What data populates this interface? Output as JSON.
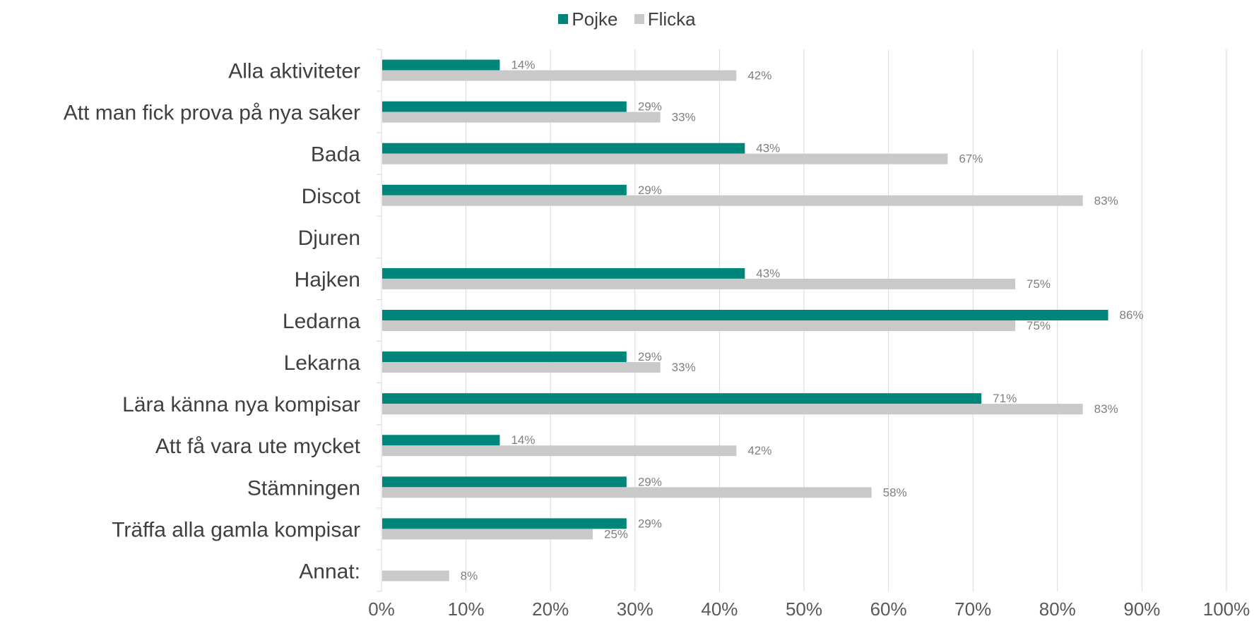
{
  "chart_data": {
    "type": "bar",
    "orientation": "horizontal",
    "categories": [
      "Alla aktiviteter",
      "Att man fick prova på nya saker",
      "Bada",
      "Discot",
      "Djuren",
      "Hajken",
      "Ledarna",
      "Lekarna",
      "Lära känna nya kompisar",
      "Att få vara ute mycket",
      "Stämningen",
      "Träffa alla gamla kompisar",
      "Annat:"
    ],
    "series": [
      {
        "name": "Pojke",
        "color": "#00857a",
        "values": [
          14,
          29,
          43,
          29,
          null,
          43,
          86,
          29,
          71,
          14,
          29,
          29,
          null
        ],
        "labels": [
          "14%",
          "29%",
          "43%",
          "29%",
          "",
          "43%",
          "86%",
          "29%",
          "71%",
          "14%",
          "29%",
          "29%",
          ""
        ]
      },
      {
        "name": "Flicka",
        "color": "#c9c9c9",
        "values": [
          42,
          33,
          67,
          83,
          null,
          75,
          75,
          33,
          83,
          42,
          58,
          25,
          8
        ],
        "labels": [
          "42%",
          "33%",
          "67%",
          "83%",
          "",
          "75%",
          "75%",
          "33%",
          "83%",
          "42%",
          "58%",
          "25%",
          "8%"
        ]
      }
    ],
    "x_ticks": [
      "0%",
      "10%",
      "20%",
      "30%",
      "40%",
      "50%",
      "60%",
      "70%",
      "80%",
      "90%",
      "100%"
    ],
    "xlim": [
      0,
      100
    ],
    "grid": true,
    "legend_position": "top"
  }
}
